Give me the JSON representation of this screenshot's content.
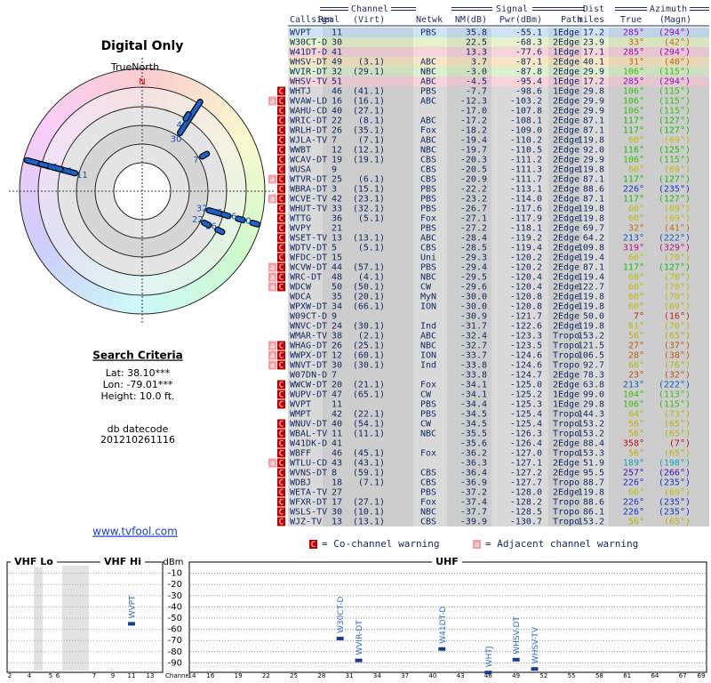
{
  "left": {
    "title": "Digital Only",
    "north_label": "TrueNorth",
    "north_mark": "N",
    "criteria_title": "Search Criteria",
    "lat": "Lat: 38.10***",
    "lon": "Lon: -79.01***",
    "height": "Height: 10.0 ft.",
    "datecode_label": "db datecode",
    "datecode": "201210261116",
    "link": "www.tvfool.com"
  },
  "table": {
    "groups": {
      "channel": "Channel",
      "signal": "Signal",
      "dist": "Dist",
      "azimuth": "Azimuth"
    },
    "headers": [
      "Callsign",
      "Real",
      "(Virt)",
      "Netwk",
      "NM(dB)",
      "Pwr(dBm)",
      "Path",
      "miles",
      "True",
      "(Magn)"
    ],
    "row_colors": [
      "#cfe3f5",
      "#e6f2cc",
      "#f6d4dc",
      "#f6e6c6",
      "#dcefcf",
      "#f6d4dc"
    ],
    "row_color_default": "#dadada",
    "rows": [
      {
        "warnings": [],
        "cells": [
          "WVPT",
          "11",
          null,
          "PBS",
          "35.8",
          "-55.1",
          "1Edge",
          "17.2",
          "285°",
          "(294°)"
        ]
      },
      {
        "warnings": [],
        "cells": [
          "W30CT-D",
          "30",
          null,
          null,
          "22.5",
          "-68.3",
          "2Edge",
          "23.9",
          "33°",
          "(42°)"
        ]
      },
      {
        "warnings": [],
        "cells": [
          "W41DT-D",
          "41",
          null,
          null,
          "13.3",
          "-77.6",
          "1Edge",
          "17.1",
          "285°",
          "(294°)"
        ]
      },
      {
        "warnings": [],
        "cells": [
          "WHSV-DT",
          "49",
          "(3.1)",
          "ABC",
          "3.7",
          "-87.1",
          "2Edge",
          "40.1",
          "31°",
          "(40°)"
        ]
      },
      {
        "warnings": [],
        "cells": [
          "WVIR-DT",
          "32",
          "(29.1)",
          "NBC",
          "-3.0",
          "-87.8",
          "2Edge",
          "29.9",
          "106°",
          "(115°)"
        ]
      },
      {
        "warnings": [],
        "cells": [
          "WHSV-TV",
          "51",
          null,
          "ABC",
          "-4.5",
          "-95.4",
          "1Edge",
          "17.2",
          "285°",
          "(294°)"
        ]
      },
      {
        "warnings": [
          "C"
        ],
        "cells": [
          "WHTJ",
          "46",
          "(41.1)",
          "PBS",
          "-7.7",
          "-98.6",
          "1Edge",
          "29.8",
          "106°",
          "(115°)"
        ]
      },
      {
        "warnings": [
          "a",
          "C"
        ],
        "cells": [
          "WVAW-LD",
          "16",
          "(16.1)",
          "ABC",
          "-12.3",
          "-103.2",
          "2Edge",
          "29.9",
          "106°",
          "(115°)"
        ]
      },
      {
        "warnings": [
          "C"
        ],
        "cells": [
          "WAHU-CD",
          "40",
          "(27.1)",
          null,
          "-17.0",
          "-107.8",
          "2Edge",
          "29.9",
          "106°",
          "(115°)"
        ]
      },
      {
        "warnings": [
          "C"
        ],
        "cells": [
          "WRIC-DT",
          "22",
          "(8.1)",
          "ABC",
          "-17.2",
          "-108.1",
          "2Edge",
          "87.1",
          "117°",
          "(127°)"
        ]
      },
      {
        "warnings": [
          "C"
        ],
        "cells": [
          "WRLH-DT",
          "26",
          "(35.1)",
          "Fox",
          "-18.2",
          "-109.0",
          "2Edge",
          "87.1",
          "117°",
          "(127°)"
        ]
      },
      {
        "warnings": [
          "C"
        ],
        "cells": [
          "WJLA-TV",
          "7",
          "(7.1)",
          "ABC",
          "-19.4",
          "-110.2",
          "2Edge",
          "119.8",
          "60°",
          "(69°)"
        ]
      },
      {
        "warnings": [
          "C"
        ],
        "cells": [
          "WWBT",
          "12",
          "(12.1)",
          "NBC",
          "-19.7",
          "-110.5",
          "2Edge",
          "92.0",
          "116°",
          "(125°)"
        ]
      },
      {
        "warnings": [
          "C"
        ],
        "cells": [
          "WCAV-DT",
          "19",
          "(19.1)",
          "CBS",
          "-20.3",
          "-111.2",
          "2Edge",
          "29.9",
          "106°",
          "(115°)"
        ]
      },
      {
        "warnings": [
          "C"
        ],
        "cells": [
          "WUSA",
          "9",
          null,
          "CBS",
          "-20.5",
          "-111.3",
          "2Edge",
          "119.8",
          "60°",
          "(69°)"
        ]
      },
      {
        "warnings": [
          "a",
          "C"
        ],
        "cells": [
          "WTVR-DT",
          "25",
          "(6.1)",
          "CBS",
          "-20.9",
          "-111.7",
          "2Edge",
          "87.1",
          "117°",
          "(127°)"
        ]
      },
      {
        "warnings": [
          "C"
        ],
        "cells": [
          "WBRA-DT",
          "3",
          "(15.1)",
          "PBS",
          "-22.2",
          "-113.1",
          "2Edge",
          "88.6",
          "226°",
          "(235°)"
        ]
      },
      {
        "warnings": [
          "a",
          "C"
        ],
        "cells": [
          "WCVE-TV",
          "42",
          "(23.1)",
          "PBS",
          "-23.2",
          "-114.0",
          "2Edge",
          "87.1",
          "117°",
          "(127°)"
        ]
      },
      {
        "warnings": [
          "C"
        ],
        "cells": [
          "WHUT-TV",
          "33",
          "(32.1)",
          "PBS",
          "-26.7",
          "-117.6",
          "2Edge",
          "119.8",
          "60°",
          "(69°)"
        ]
      },
      {
        "warnings": [
          "C"
        ],
        "cells": [
          "WTTG",
          "36",
          "(5.1)",
          "Fox",
          "-27.1",
          "-117.9",
          "2Edge",
          "119.8",
          "60°",
          "(69°)"
        ]
      },
      {
        "warnings": [
          "C"
        ],
        "cells": [
          "WVPY",
          "21",
          null,
          "PBS",
          "-27.2",
          "-118.1",
          "2Edge",
          "69.7",
          "32°",
          "(41°)"
        ]
      },
      {
        "warnings": [
          "C"
        ],
        "cells": [
          "WSET-TV",
          "13",
          "(13.1)",
          "ABC",
          "-28.4",
          "-119.2",
          "2Edge",
          "64.2",
          "213°",
          "(222°)"
        ]
      },
      {
        "warnings": [
          "C"
        ],
        "cells": [
          "WDTV-DT",
          "5",
          "(5.1)",
          "CBS",
          "-28.5",
          "-119.4",
          "2Edge",
          "109.8",
          "319°",
          "(329°)"
        ]
      },
      {
        "warnings": [
          "C"
        ],
        "cells": [
          "WFDC-DT",
          "15",
          null,
          "Uni",
          "-29.3",
          "-120.2",
          "2Edge",
          "119.4",
          "60°",
          "(70°)"
        ]
      },
      {
        "warnings": [
          "a",
          "C"
        ],
        "cells": [
          "WCVW-DT",
          "44",
          "(57.1)",
          "PBS",
          "-29.4",
          "-120.2",
          "2Edge",
          "87.1",
          "117°",
          "(127°)"
        ]
      },
      {
        "warnings": [
          "a",
          "C"
        ],
        "cells": [
          "WRC-DT",
          "48",
          "(4.1)",
          "NBC",
          "-29.5",
          "-120.4",
          "2Edge",
          "119.4",
          "60°",
          "(70°)"
        ]
      },
      {
        "warnings": [
          "a",
          "C"
        ],
        "cells": [
          "WDCW",
          "50",
          "(50.1)",
          "CW",
          "-29.6",
          "-120.4",
          "2Edge",
          "122.7",
          "60°",
          "(70°)"
        ]
      },
      {
        "warnings": [],
        "cells": [
          "WDCA",
          "35",
          "(20.1)",
          "MyN",
          "-30.0",
          "-120.8",
          "2Edge",
          "119.8",
          "60°",
          "(70°)"
        ]
      },
      {
        "warnings": [],
        "cells": [
          "WPXW-DT",
          "34",
          "(66.1)",
          "ION",
          "-30.0",
          "-120.8",
          "2Edge",
          "119.8",
          "60°",
          "(69°)"
        ]
      },
      {
        "warnings": [],
        "cells": [
          "W09CT-D",
          "9",
          null,
          null,
          "-30.9",
          "-121.7",
          "2Edge",
          "50.0",
          "7°",
          "(16°)"
        ]
      },
      {
        "warnings": [],
        "cells": [
          "WNVC-DT",
          "24",
          "(30.1)",
          "Ind",
          "-31.7",
          "-122.6",
          "2Edge",
          "119.8",
          "61°",
          "(70°)"
        ]
      },
      {
        "warnings": [],
        "cells": [
          "WMAR-TV",
          "38",
          "(2.1)",
          "ABC",
          "-32.4",
          "-123.3",
          "Tropo",
          "153.2",
          "56°",
          "(65°)"
        ]
      },
      {
        "warnings": [
          "a",
          "C"
        ],
        "cells": [
          "WHAG-DT",
          "26",
          "(25.1)",
          "NBC",
          "-32.7",
          "-123.5",
          "Tropo",
          "121.5",
          "27°",
          "(37°)"
        ]
      },
      {
        "warnings": [
          "a",
          "C"
        ],
        "cells": [
          "WWPX-DT",
          "12",
          "(60.1)",
          "ION",
          "-33.7",
          "-124.6",
          "Tropo",
          "106.5",
          "28°",
          "(38°)"
        ]
      },
      {
        "warnings": [
          "a",
          "C"
        ],
        "cells": [
          "WNVT-DT",
          "30",
          "(30.1)",
          "Ind",
          "-33.8",
          "-124.6",
          "Tropo",
          "92.7",
          "66°",
          "(76°)"
        ]
      },
      {
        "warnings": [],
        "cells": [
          "W07DN-D",
          "7",
          null,
          null,
          "-33.8",
          "-124.7",
          "2Edge",
          "78.3",
          "23°",
          "(32°)"
        ]
      },
      {
        "warnings": [
          "C"
        ],
        "cells": [
          "WWCW-DT",
          "20",
          "(21.1)",
          "Fox",
          "-34.1",
          "-125.0",
          "2Edge",
          "63.8",
          "213°",
          "(222°)"
        ]
      },
      {
        "warnings": [
          "C"
        ],
        "cells": [
          "WUPV-DT",
          "47",
          "(65.1)",
          "CW",
          "-34.1",
          "-125.2",
          "1Edge",
          "99.0",
          "104°",
          "(113°)"
        ]
      },
      {
        "warnings": [
          "C"
        ],
        "cells": [
          "WVPT",
          "11",
          null,
          "PBS",
          "-34.4",
          "-125.3",
          "1Edge",
          "29.8",
          "106°",
          "(115°)"
        ]
      },
      {
        "warnings": [],
        "cells": [
          "WMPT",
          "42",
          "(22.1)",
          "PBS",
          "-34.5",
          "-125.4",
          "Tropo",
          "144.3",
          "64°",
          "(73°)"
        ]
      },
      {
        "warnings": [
          "C"
        ],
        "cells": [
          "WNUV-DT",
          "40",
          "(54.1)",
          "CW",
          "-34.5",
          "-125.4",
          "Tropo",
          "153.2",
          "56°",
          "(65°)"
        ]
      },
      {
        "warnings": [
          "C"
        ],
        "cells": [
          "WBAL-TV",
          "11",
          "(11.1)",
          "NBC",
          "-35.5",
          "-126.3",
          "Tropo",
          "153.2",
          "56°",
          "(65°)"
        ]
      },
      {
        "warnings": [
          "C"
        ],
        "cells": [
          "W41DK-D",
          "41",
          null,
          null,
          "-35.6",
          "-126.4",
          "2Edge",
          "88.4",
          "358°",
          "(7°)"
        ]
      },
      {
        "warnings": [
          "C"
        ],
        "cells": [
          "WBFF",
          "46",
          "(45.1)",
          "Fox",
          "-36.2",
          "-127.0",
          "Tropo",
          "153.3",
          "56°",
          "(65°)"
        ]
      },
      {
        "warnings": [
          "a",
          "C"
        ],
        "cells": [
          "WTLU-CD",
          "43",
          "(43.1)",
          null,
          "-36.3",
          "-127.1",
          "2Edge",
          "51.9",
          "189°",
          "(198°)"
        ]
      },
      {
        "warnings": [
          "C"
        ],
        "cells": [
          "WVNS-DT",
          "8",
          "(59.1)",
          "CBS",
          "-36.4",
          "-127.2",
          "2Edge",
          "95.5",
          "257°",
          "(266°)"
        ]
      },
      {
        "warnings": [
          "C"
        ],
        "cells": [
          "WDBJ",
          "18",
          "(7.1)",
          "CBS",
          "-36.9",
          "-127.7",
          "Tropo",
          "88.7",
          "226°",
          "(235°)"
        ]
      },
      {
        "warnings": [
          "C"
        ],
        "cells": [
          "WETA-TV",
          "27",
          null,
          "PBS",
          "-37.2",
          "-128.0",
          "2Edge",
          "119.8",
          "60°",
          "(69°)"
        ]
      },
      {
        "warnings": [
          "C"
        ],
        "cells": [
          "WFXR-DT",
          "17",
          "(27.1)",
          "Fox",
          "-37.4",
          "-128.2",
          "Tropo",
          "88.6",
          "226°",
          "(235°)"
        ]
      },
      {
        "warnings": [
          "C"
        ],
        "cells": [
          "WSLS-TV",
          "30",
          "(10.1)",
          "NBC",
          "-37.7",
          "-128.5",
          "Tropo",
          "86.1",
          "226°",
          "(235°)"
        ]
      },
      {
        "warnings": [
          "C"
        ],
        "cells": [
          "WJZ-TV",
          "13",
          "(13.1)",
          "CBS",
          "-39.9",
          "-130.7",
          "Tropo",
          "153.2",
          "56°",
          "(65°)"
        ]
      }
    ]
  },
  "legend": {
    "co_symbol": "C",
    "co_text": "= Co-channel warning",
    "adj_symbol": "a",
    "adj_text": "= Adjacent channel warning"
  },
  "chart_data": [
    {
      "type": "bar",
      "titles": [
        "VHF Lo",
        "VHF Hi"
      ],
      "x": [
        11
      ],
      "values": [
        -55.1
      ],
      "labels": [
        "WVPT"
      ],
      "xticks": [
        2,
        4,
        5,
        6,
        7,
        9,
        11,
        13
      ],
      "ylim": [
        -100,
        0
      ],
      "color": "#1a3c8c"
    },
    {
      "type": "bar",
      "title": "UHF",
      "y_label": "dBm",
      "x_label": "Channel",
      "x": [
        30,
        32,
        41,
        46,
        49,
        51
      ],
      "values": [
        -68.3,
        -87.8,
        -77.6,
        -98.6,
        -87.1,
        -95.4
      ],
      "labels": [
        "W30CT-D",
        "WVIR-DT",
        "W41DT-D",
        "WHTJ",
        "WHSV-DT",
        "WHSV-TV"
      ],
      "xlim": [
        14,
        69
      ],
      "xticks": [
        14,
        16,
        19,
        22,
        25,
        28,
        31,
        34,
        37,
        40,
        43,
        46,
        49,
        52,
        55,
        58,
        61,
        64,
        67,
        69
      ],
      "ylim": [
        -100,
        0
      ],
      "yticks": [
        -10,
        -20,
        -30,
        -40,
        -50,
        -60,
        -70,
        -80,
        -90
      ],
      "grid": true,
      "color": "#1a3c8c"
    }
  ]
}
